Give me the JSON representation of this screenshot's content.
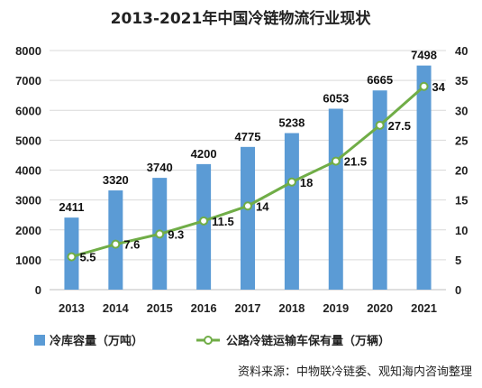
{
  "chart_data": {
    "type": "bar",
    "title": "2013-2021年中国冷链物流行业现状",
    "categories": [
      "2013",
      "2014",
      "2015",
      "2016",
      "2017",
      "2018",
      "2019",
      "2020",
      "2021"
    ],
    "series": [
      {
        "name": "冷库容量（万吨）",
        "type": "bar",
        "axis": "left",
        "color": "#5b9bd5",
        "values": [
          2411,
          3320,
          3740,
          4200,
          4775,
          5238,
          6053,
          6665,
          7498
        ]
      },
      {
        "name": "公路冷链运输车保有量（万辆）",
        "type": "line",
        "axis": "right",
        "color": "#70ad47",
        "values": [
          5.5,
          7.6,
          9.3,
          11.5,
          14,
          18,
          21.5,
          27.5,
          34
        ]
      }
    ],
    "y_left": {
      "ylim": [
        0,
        8000
      ],
      "ticks": [
        0,
        1000,
        2000,
        3000,
        4000,
        5000,
        6000,
        7000,
        8000
      ]
    },
    "y_right": {
      "ylim": [
        0,
        40
      ],
      "ticks": [
        0,
        5,
        10,
        15,
        20,
        25,
        30,
        35,
        40
      ]
    },
    "grid": true,
    "legend_position": "bottom",
    "source": "资料来源：中物联冷链委、观知海内咨询整理"
  }
}
